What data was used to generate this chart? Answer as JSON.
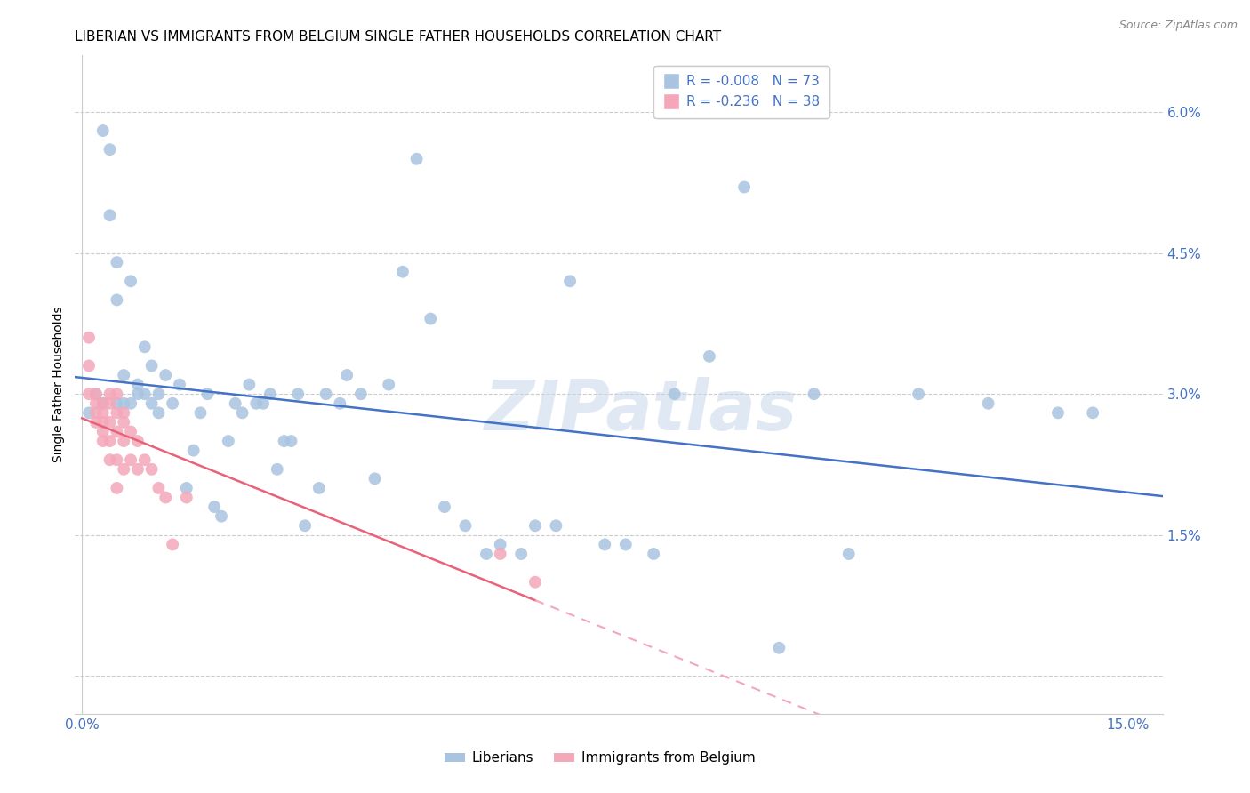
{
  "title": "LIBERIAN VS IMMIGRANTS FROM BELGIUM SINGLE FATHER HOUSEHOLDS CORRELATION CHART",
  "source": "Source: ZipAtlas.com",
  "ylabel": "Single Father Households",
  "y_ticks": [
    0.0,
    0.015,
    0.03,
    0.045,
    0.06
  ],
  "y_tick_labels": [
    "",
    "1.5%",
    "3.0%",
    "4.5%",
    "6.0%"
  ],
  "x_ticks": [
    0.0,
    0.025,
    0.05,
    0.075,
    0.1,
    0.125,
    0.15
  ],
  "x_tick_labels": [
    "0.0%",
    "",
    "",
    "",
    "",
    "",
    "15.0%"
  ],
  "xlim": [
    -0.001,
    0.155
  ],
  "ylim": [
    -0.004,
    0.066
  ],
  "liberian_color": "#a8c4e0",
  "belgium_color": "#f4a7b9",
  "liberian_line_color": "#4472c4",
  "belgium_line_color": "#e8637a",
  "belgium_dash_color": "#f4a7b9",
  "legend_liberian": "Liberians",
  "legend_belgium": "Immigrants from Belgium",
  "liberian_R": -0.008,
  "liberian_N": 73,
  "belgium_R": -0.236,
  "belgium_N": 38,
  "liberian_x": [
    0.001,
    0.002,
    0.003,
    0.003,
    0.004,
    0.004,
    0.005,
    0.005,
    0.005,
    0.006,
    0.006,
    0.007,
    0.007,
    0.008,
    0.008,
    0.009,
    0.009,
    0.01,
    0.01,
    0.011,
    0.011,
    0.012,
    0.013,
    0.014,
    0.015,
    0.016,
    0.017,
    0.018,
    0.019,
    0.02,
    0.021,
    0.022,
    0.023,
    0.024,
    0.025,
    0.026,
    0.027,
    0.028,
    0.029,
    0.03,
    0.031,
    0.032,
    0.034,
    0.035,
    0.037,
    0.038,
    0.04,
    0.042,
    0.044,
    0.046,
    0.048,
    0.05,
    0.052,
    0.055,
    0.058,
    0.06,
    0.063,
    0.065,
    0.068,
    0.07,
    0.075,
    0.078,
    0.082,
    0.085,
    0.09,
    0.095,
    0.1,
    0.105,
    0.11,
    0.12,
    0.13,
    0.14,
    0.145
  ],
  "liberian_y": [
    0.028,
    0.03,
    0.058,
    0.029,
    0.056,
    0.049,
    0.04,
    0.029,
    0.044,
    0.032,
    0.029,
    0.029,
    0.042,
    0.031,
    0.03,
    0.035,
    0.03,
    0.033,
    0.029,
    0.028,
    0.03,
    0.032,
    0.029,
    0.031,
    0.02,
    0.024,
    0.028,
    0.03,
    0.018,
    0.017,
    0.025,
    0.029,
    0.028,
    0.031,
    0.029,
    0.029,
    0.03,
    0.022,
    0.025,
    0.025,
    0.03,
    0.016,
    0.02,
    0.03,
    0.029,
    0.032,
    0.03,
    0.021,
    0.031,
    0.043,
    0.055,
    0.038,
    0.018,
    0.016,
    0.013,
    0.014,
    0.013,
    0.016,
    0.016,
    0.042,
    0.014,
    0.014,
    0.013,
    0.03,
    0.034,
    0.052,
    0.003,
    0.03,
    0.013,
    0.03,
    0.029,
    0.028,
    0.028
  ],
  "belgium_x": [
    0.001,
    0.001,
    0.001,
    0.002,
    0.002,
    0.002,
    0.002,
    0.003,
    0.003,
    0.003,
    0.003,
    0.003,
    0.004,
    0.004,
    0.004,
    0.004,
    0.004,
    0.005,
    0.005,
    0.005,
    0.005,
    0.005,
    0.006,
    0.006,
    0.006,
    0.006,
    0.007,
    0.007,
    0.008,
    0.008,
    0.009,
    0.01,
    0.011,
    0.012,
    0.013,
    0.015,
    0.06,
    0.065
  ],
  "belgium_y": [
    0.036,
    0.033,
    0.03,
    0.03,
    0.029,
    0.028,
    0.027,
    0.029,
    0.028,
    0.027,
    0.026,
    0.025,
    0.03,
    0.029,
    0.027,
    0.025,
    0.023,
    0.03,
    0.028,
    0.026,
    0.023,
    0.02,
    0.028,
    0.027,
    0.025,
    0.022,
    0.026,
    0.023,
    0.025,
    0.022,
    0.023,
    0.022,
    0.02,
    0.019,
    0.014,
    0.019,
    0.013,
    0.01
  ]
}
